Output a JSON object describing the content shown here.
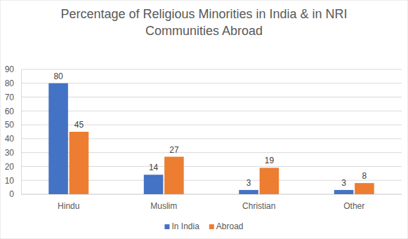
{
  "chart_data": {
    "type": "bar",
    "title": "Percentage of Religious Minorities in India & in NRI Communities Abroad",
    "categories": [
      "Hindu",
      "Muslim",
      "Christian",
      "Other"
    ],
    "series": [
      {
        "name": "In India",
        "color": "#4472c4",
        "values": [
          80,
          14,
          3,
          3
        ]
      },
      {
        "name": "Abroad",
        "color": "#ed7d31",
        "values": [
          45,
          27,
          19,
          8
        ]
      }
    ],
    "ylim": [
      0,
      90
    ],
    "yticks": [
      0,
      10,
      20,
      30,
      40,
      50,
      60,
      70,
      80,
      90
    ],
    "grid": true,
    "data_labels": true,
    "legend": "bottom"
  }
}
